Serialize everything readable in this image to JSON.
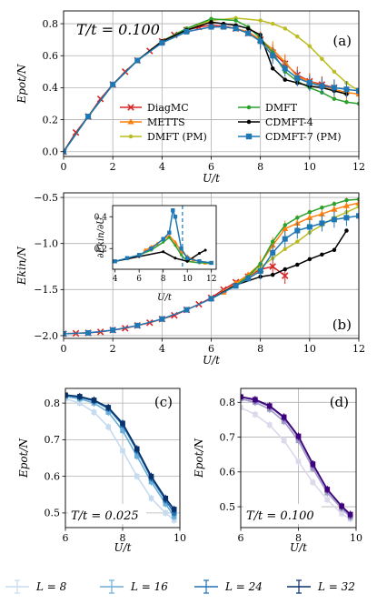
{
  "colors": {
    "diagmc": "#d62728",
    "metts": "#ff7f0e",
    "dmft_pm": "#bcbd22",
    "dmft": "#2ca02c",
    "cdmft4": "#000000",
    "cdmft7": "#1f77b4",
    "L8": "#c6dbef",
    "L16": "#6baed6",
    "L24": "#2171b5",
    "L32": "#08306b",
    "pL8": "#dadaeb",
    "pL16": "#9e9ac8",
    "pL24": "#6a51a3",
    "pL32": "#3f007d"
  },
  "bottom_legend": [
    "L = 8",
    "L = 16",
    "L = 24",
    "L = 32"
  ],
  "chart_data": [
    {
      "type": "line",
      "panel": "(a)",
      "annotation": "T/t = 0.100",
      "xlabel": "U/t",
      "ylabel": "Epot/N",
      "xlim": [
        0,
        12
      ],
      "ylim": [
        -0.03,
        0.88
      ],
      "xticks": [
        "0",
        "2",
        "4",
        "6",
        "8",
        "10",
        "12"
      ],
      "yticks": [
        "0.0",
        "0.2",
        "0.4",
        "0.6",
        "0.8"
      ],
      "grid": true,
      "legend": "center",
      "series": [
        {
          "name": "DiagMC",
          "key": "diagmc",
          "marker": "x",
          "x": [
            0,
            0.5,
            1,
            1.5,
            2,
            2.5,
            3,
            3.5,
            4,
            4.5,
            5,
            5.5,
            6,
            6.5,
            7,
            7.5,
            8,
            8.5,
            9,
            9.5,
            10,
            10.5,
            11
          ],
          "y": [
            0,
            0.12,
            0.22,
            0.33,
            0.42,
            0.5,
            0.57,
            0.63,
            0.69,
            0.73,
            0.76,
            0.78,
            0.79,
            0.785,
            0.77,
            0.74,
            0.7,
            0.62,
            0.55,
            0.48,
            0.44,
            0.42,
            0.4
          ]
        },
        {
          "name": "METTS",
          "key": "metts",
          "marker": "^",
          "x": [
            6.5,
            7,
            7.5,
            8,
            8.5,
            9,
            9.5,
            10,
            10.5,
            11,
            11.5,
            12
          ],
          "y": [
            0.78,
            0.77,
            0.75,
            0.7,
            0.64,
            0.56,
            0.47,
            0.44,
            0.41,
            0.39,
            0.37,
            0.36
          ]
        },
        {
          "name": "DMFT (PM)",
          "key": "dmft_pm",
          "marker": "o",
          "x": [
            0,
            1,
            2,
            3,
            4,
            5,
            6,
            7,
            8,
            8.5,
            9,
            9.5,
            10,
            10.5,
            11,
            11.5,
            12
          ],
          "y": [
            0,
            0.22,
            0.42,
            0.57,
            0.69,
            0.77,
            0.82,
            0.835,
            0.82,
            0.8,
            0.77,
            0.72,
            0.66,
            0.58,
            0.5,
            0.43,
            0.38
          ]
        },
        {
          "name": "DMFT",
          "key": "dmft",
          "marker": "o",
          "x": [
            0,
            1,
            2,
            3,
            4,
            5,
            6,
            7,
            7.5,
            8,
            8.5,
            9,
            9.5,
            10,
            10.5,
            11,
            11.5,
            12
          ],
          "y": [
            0,
            0.22,
            0.42,
            0.57,
            0.69,
            0.77,
            0.83,
            0.82,
            0.78,
            0.71,
            0.62,
            0.5,
            0.44,
            0.4,
            0.37,
            0.33,
            0.31,
            0.3
          ]
        },
        {
          "name": "CDMFT-4",
          "key": "cdmft4",
          "marker": "o",
          "x": [
            0,
            1,
            2,
            3,
            4,
            5,
            6,
            6.5,
            7,
            7.5,
            8,
            8.5,
            9,
            9.5,
            10,
            10.5,
            11,
            11.5
          ],
          "y": [
            0,
            0.22,
            0.42,
            0.57,
            0.69,
            0.76,
            0.81,
            0.8,
            0.79,
            0.77,
            0.73,
            0.52,
            0.45,
            0.43,
            0.41,
            0.4,
            0.38,
            0.36
          ]
        },
        {
          "name": "CDMFT-7 (PM)",
          "key": "cdmft7",
          "marker": "s",
          "x": [
            0,
            1,
            2,
            3,
            4,
            5,
            6,
            6.5,
            7,
            7.5,
            8,
            8.5,
            9,
            9.5,
            10,
            10.5,
            11,
            11.5,
            12
          ],
          "y": [
            0,
            0.22,
            0.42,
            0.57,
            0.68,
            0.75,
            0.78,
            0.78,
            0.77,
            0.74,
            0.69,
            0.6,
            0.52,
            0.46,
            0.43,
            0.41,
            0.4,
            0.39,
            0.38
          ]
        }
      ]
    },
    {
      "type": "line",
      "panel": "(b)",
      "xlabel": "U/t",
      "ylabel": "Ekin/N",
      "xlim": [
        0,
        12
      ],
      "ylim": [
        -2.03,
        -0.45
      ],
      "xticks": [
        "0",
        "2",
        "4",
        "6",
        "8",
        "10",
        "12"
      ],
      "yticks": [
        "-2.0",
        "-1.5",
        "-1.0",
        "-0.5"
      ],
      "grid": true,
      "series": [
        {
          "name": "DiagMC",
          "key": "diagmc",
          "marker": "x",
          "x": [
            0,
            0.5,
            1,
            1.5,
            2,
            2.5,
            3,
            3.5,
            4,
            4.5,
            5,
            5.5,
            6,
            6.5,
            7,
            7.5,
            8,
            8.5,
            9
          ],
          "y": [
            -1.98,
            -1.975,
            -1.97,
            -1.96,
            -1.94,
            -1.92,
            -1.89,
            -1.86,
            -1.82,
            -1.78,
            -1.72,
            -1.66,
            -1.59,
            -1.5,
            -1.42,
            -1.36,
            -1.28,
            -1.25,
            -1.35
          ]
        },
        {
          "name": "METTS",
          "key": "metts",
          "marker": "^",
          "x": [
            6.5,
            7,
            7.5,
            8,
            8.5,
            9,
            9.5,
            10,
            10.5,
            11,
            11.5,
            12
          ],
          "y": [
            -1.53,
            -1.43,
            -1.34,
            -1.22,
            -1.02,
            -0.84,
            -0.78,
            -0.72,
            -0.68,
            -0.63,
            -0.59,
            -0.56
          ]
        },
        {
          "name": "DMFT (PM)",
          "key": "dmft_pm",
          "marker": "o",
          "x": [
            6,
            7,
            8,
            8.5,
            9,
            9.5,
            10,
            10.5,
            11,
            11.5,
            12
          ],
          "y": [
            -1.6,
            -1.45,
            -1.26,
            -1.16,
            -1.06,
            -0.98,
            -0.88,
            -0.8,
            -0.72,
            -0.66,
            -0.6
          ]
        },
        {
          "name": "DMFT",
          "key": "dmft",
          "marker": "o",
          "x": [
            6,
            7,
            7.5,
            8,
            8.5,
            9,
            9.5,
            10,
            10.5,
            11,
            11.5,
            12
          ],
          "y": [
            -1.6,
            -1.45,
            -1.36,
            -1.22,
            -0.98,
            -0.8,
            -0.72,
            -0.66,
            -0.61,
            -0.57,
            -0.53,
            -0.52
          ]
        },
        {
          "name": "CDMFT-4",
          "key": "cdmft4",
          "marker": "o",
          "x": [
            6,
            7,
            8,
            8.5,
            9,
            9.5,
            10,
            10.5,
            11,
            11.5
          ],
          "y": [
            -1.6,
            -1.45,
            -1.36,
            -1.34,
            -1.28,
            -1.23,
            -1.17,
            -1.12,
            -1.07,
            -0.86
          ]
        },
        {
          "name": "CDMFT-7 (PM)",
          "key": "cdmft7",
          "marker": "s",
          "x": [
            0,
            1,
            2,
            3,
            4,
            5,
            6,
            7,
            7.5,
            8,
            8.5,
            9,
            9.5,
            10,
            10.5,
            11,
            11.5,
            12
          ],
          "y": [
            -1.98,
            -1.97,
            -1.94,
            -1.89,
            -1.82,
            -1.72,
            -1.6,
            -1.46,
            -1.38,
            -1.3,
            -1.1,
            -0.95,
            -0.86,
            -0.82,
            -0.78,
            -0.74,
            -0.72,
            -0.7
          ]
        }
      ]
    },
    {
      "type": "line",
      "panel": "(b) inset",
      "xlabel": "U/t",
      "ylabel": "∂Ekin/∂U",
      "xlim": [
        3.8,
        12.4
      ],
      "ylim": [
        0.07,
        0.47
      ],
      "xticks": [
        "4",
        "6",
        "8",
        "10",
        "12"
      ],
      "yticks": [
        "0.2",
        "0.4"
      ],
      "vline": 9.6,
      "series": [
        {
          "key": "metts",
          "marker": "^",
          "x": [
            6.5,
            7,
            7.5,
            8,
            8.5,
            9,
            9.5,
            10,
            10.5,
            11,
            11.5
          ],
          "y": [
            0.19,
            0.21,
            0.23,
            0.26,
            0.28,
            0.24,
            0.18,
            0.15,
            0.13,
            0.12,
            0.11
          ]
        },
        {
          "key": "dmft",
          "marker": "o",
          "x": [
            4,
            5,
            6,
            7,
            8,
            8.5,
            9,
            9.5,
            10,
            11,
            11.8
          ],
          "y": [
            0.12,
            0.14,
            0.16,
            0.19,
            0.24,
            0.27,
            0.22,
            0.16,
            0.12,
            0.11,
            0.11
          ]
        },
        {
          "key": "cdmft4",
          "marker": "o",
          "x": [
            4,
            6,
            8,
            9,
            10,
            11,
            11.5
          ],
          "y": [
            0.12,
            0.15,
            0.18,
            0.14,
            0.12,
            0.17,
            0.19
          ]
        },
        {
          "key": "cdmft7",
          "marker": "s",
          "x": [
            4,
            5,
            6,
            7,
            8,
            8.5,
            8.8,
            9,
            9.5,
            10,
            11,
            12
          ],
          "y": [
            0.12,
            0.14,
            0.16,
            0.2,
            0.26,
            0.3,
            0.44,
            0.4,
            0.2,
            0.14,
            0.12,
            0.11
          ]
        }
      ]
    },
    {
      "type": "line",
      "panel": "(c)",
      "annotation": "T/t = 0.025",
      "xlabel": "U/t",
      "ylabel": "Epot/N",
      "xlim": [
        6,
        10
      ],
      "ylim": [
        0.46,
        0.84
      ],
      "xticks": [
        "6",
        "8",
        "10"
      ],
      "yticks": [
        "0.5",
        "0.6",
        "0.7",
        "0.8"
      ],
      "grid": true,
      "series": [
        {
          "name": "L = 8",
          "key": "L8",
          "x": [
            6,
            6.5,
            7,
            7.5,
            8,
            8.5,
            9,
            9.5,
            9.8
          ],
          "y": [
            0.812,
            0.8,
            0.775,
            0.735,
            0.67,
            0.6,
            0.54,
            0.5,
            0.48
          ]
        },
        {
          "name": "L = 16",
          "key": "L16",
          "x": [
            6,
            6.5,
            7,
            7.5,
            8,
            8.5,
            9,
            9.5,
            9.8
          ],
          "y": [
            0.818,
            0.812,
            0.8,
            0.775,
            0.725,
            0.655,
            0.585,
            0.525,
            0.49
          ]
        },
        {
          "name": "L = 24",
          "key": "L24",
          "x": [
            6,
            6.5,
            7,
            7.5,
            8,
            8.5,
            9,
            9.5,
            9.8
          ],
          "y": [
            0.821,
            0.816,
            0.806,
            0.785,
            0.74,
            0.67,
            0.595,
            0.535,
            0.5
          ]
        },
        {
          "name": "L = 32",
          "key": "L32",
          "x": [
            6,
            6.5,
            7,
            7.5,
            8,
            8.5,
            9,
            9.5,
            9.8
          ],
          "y": [
            0.822,
            0.818,
            0.808,
            0.788,
            0.745,
            0.675,
            0.6,
            0.54,
            0.51
          ]
        }
      ]
    },
    {
      "type": "line",
      "panel": "(d)",
      "annotation": "T/t = 0.100",
      "xlabel": "U/t",
      "ylabel": "Epot/N",
      "xlim": [
        6,
        10
      ],
      "ylim": [
        0.44,
        0.84
      ],
      "xticks": [
        "6",
        "8",
        "10"
      ],
      "yticks": [
        "0.5",
        "0.6",
        "0.7",
        "0.8"
      ],
      "grid": true,
      "series": [
        {
          "name": "L = 8",
          "key": "pL8",
          "x": [
            6,
            6.5,
            7,
            7.5,
            8,
            8.5,
            9,
            9.5,
            9.8
          ],
          "y": [
            0.785,
            0.765,
            0.735,
            0.69,
            0.63,
            0.57,
            0.52,
            0.48,
            0.465
          ]
        },
        {
          "name": "L = 16",
          "key": "pL16",
          "x": [
            6,
            6.5,
            7,
            7.5,
            8,
            8.5,
            9,
            9.5,
            9.8
          ],
          "y": [
            0.81,
            0.8,
            0.78,
            0.745,
            0.69,
            0.61,
            0.54,
            0.495,
            0.47
          ]
        },
        {
          "name": "L = 24",
          "key": "pL24",
          "x": [
            6,
            6.5,
            7,
            7.5,
            8,
            8.5,
            9,
            9.5,
            9.8
          ],
          "y": [
            0.815,
            0.806,
            0.788,
            0.755,
            0.7,
            0.62,
            0.548,
            0.5,
            0.475
          ]
        },
        {
          "name": "L = 32",
          "key": "pL32",
          "x": [
            6,
            6.5,
            7,
            7.5,
            8,
            8.5,
            9,
            9.5,
            9.8
          ],
          "y": [
            0.816,
            0.808,
            0.79,
            0.758,
            0.703,
            0.623,
            0.55,
            0.502,
            0.478
          ]
        }
      ]
    }
  ]
}
